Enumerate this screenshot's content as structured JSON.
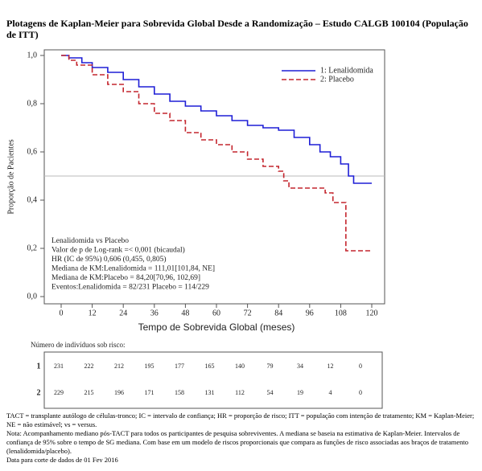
{
  "title": "Plotagens de Kaplan-Meier para Sobrevida Global Desde a Randomização – Estudo CALGB 100104 (População de ITT)",
  "chart_data": {
    "type": "step",
    "xlabel": "Tempo de Sobrevida Global (meses)",
    "ylabel": "Proporção de Pacientes",
    "xlim": [
      0,
      120
    ],
    "ylim": [
      0,
      1
    ],
    "xticks": [
      0,
      12,
      24,
      36,
      48,
      60,
      72,
      84,
      96,
      108,
      120
    ],
    "yticks": [
      {
        "value": 0,
        "label": "0,0"
      },
      {
        "value": 0.2,
        "label": "0,2"
      },
      {
        "value": 0.4,
        "label": "0,4"
      },
      {
        "value": 0.6,
        "label": "0,6"
      },
      {
        "value": 0.8,
        "label": "0,8"
      },
      {
        "value": 1,
        "label": "1,0"
      }
    ],
    "reference_line": 0.5,
    "legend": "top-right",
    "series": [
      {
        "name": "1: Lenalidomida",
        "color": "#1f1fd6",
        "dash": false,
        "x": [
          0,
          3,
          8,
          12,
          18,
          24,
          30,
          36,
          42,
          48,
          54,
          60,
          66,
          72,
          78,
          84,
          90,
          96,
          100,
          104,
          108,
          111,
          113,
          120
        ],
        "values": [
          1,
          0.99,
          0.97,
          0.95,
          0.93,
          0.9,
          0.87,
          0.84,
          0.81,
          0.79,
          0.77,
          0.75,
          0.73,
          0.71,
          0.7,
          0.69,
          0.66,
          0.63,
          0.6,
          0.58,
          0.55,
          0.5,
          0.47,
          0.47
        ]
      },
      {
        "name": "2: Placebo",
        "color": "#c4262e",
        "dash": true,
        "x": [
          0,
          3,
          6,
          12,
          18,
          24,
          30,
          36,
          42,
          48,
          54,
          60,
          66,
          72,
          78,
          84,
          86,
          88,
          96,
          102,
          105,
          108,
          110,
          120
        ],
        "values": [
          1,
          0.98,
          0.96,
          0.92,
          0.88,
          0.85,
          0.8,
          0.76,
          0.73,
          0.68,
          0.65,
          0.63,
          0.6,
          0.57,
          0.54,
          0.52,
          0.48,
          0.45,
          0.45,
          0.43,
          0.39,
          0.39,
          0.19,
          0.19
        ]
      }
    ],
    "annotations": [
      "Lenalidomida vs Placebo",
      "Valor de p de Log-rank =< 0,001 (bicaudal)",
      "HR (IC de 95%) 0,606 (0,455, 0,805)",
      "Mediana de KM:Lenalidomida = 111,01[101,84, NE]",
      "Mediana de KM:Placebo = 84,20[70,96, 102,69]",
      "Eventos:Lenalidomida = 82/231 Placebo = 114/229"
    ],
    "risk_table": {
      "title": "Número de indivíduos sob risco:",
      "rows": [
        {
          "label": "1",
          "values": [
            231,
            222,
            212,
            195,
            177,
            165,
            140,
            79,
            34,
            12,
            0
          ]
        },
        {
          "label": "2",
          "values": [
            229,
            215,
            196,
            171,
            158,
            131,
            112,
            54,
            19,
            4,
            0
          ]
        }
      ]
    }
  },
  "footnotes": [
    "TACT = transplante autólogo de células-tronco; IC = intervalo de confiança; HR = proporção de risco; ITT = população com intenção de tratamento; KM = Kaplan-Meier; NE = não estimável; vs = versus.",
    "Nota: Acompanhamento mediano pós-TACT para todos os participantes de pesquisa sobreviventes. A mediana se baseia na estimativa de Kaplan-Meier. Intervalos de confiança de 95% sobre o tempo de SG mediana. Com base em um modelo de riscos proporcionais que compara as funções de risco associadas aos braços de tratamento (lenalidomida/placebo).",
    "Data para corte de dados de 01 Fev 2016"
  ]
}
